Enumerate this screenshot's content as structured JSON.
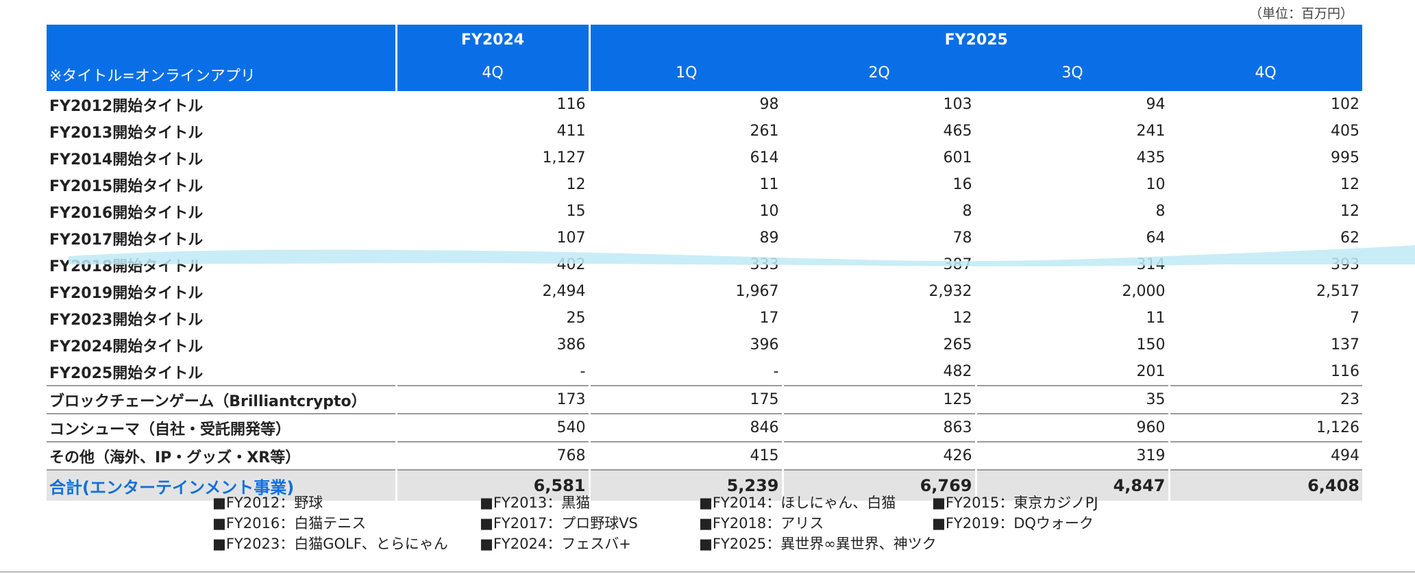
{
  "unit_label": "（単位：百万円）",
  "header": {
    "fy2024": "FY2024",
    "fy2025": "FY2025",
    "title_note": "※タイトル=オンラインアプリ",
    "quarters": [
      "4Q",
      "1Q",
      "2Q",
      "3Q",
      "4Q"
    ]
  },
  "rows": [
    {
      "label": "FY2012開始タイトル",
      "values": [
        "116",
        "98",
        "103",
        "94",
        "102"
      ]
    },
    {
      "label": "FY2013開始タイトル",
      "values": [
        "411",
        "261",
        "465",
        "241",
        "405"
      ]
    },
    {
      "label": "FY2014開始タイトル",
      "values": [
        "1,127",
        "614",
        "601",
        "435",
        "995"
      ]
    },
    {
      "label": "FY2015開始タイトル",
      "values": [
        "12",
        "11",
        "16",
        "10",
        "12"
      ]
    },
    {
      "label": "FY2016開始タイトル",
      "values": [
        "15",
        "10",
        "8",
        "8",
        "12"
      ]
    },
    {
      "label": "FY2017開始タイトル",
      "values": [
        "107",
        "89",
        "78",
        "64",
        "62"
      ]
    },
    {
      "label": "FY2018開始タイトル",
      "values": [
        "402",
        "333",
        "387",
        "314",
        "393"
      ]
    },
    {
      "label": "FY2019開始タイトル",
      "values": [
        "2,494",
        "1,967",
        "2,932",
        "2,000",
        "2,517"
      ]
    },
    {
      "label": "FY2023開始タイトル",
      "values": [
        "25",
        "17",
        "12",
        "11",
        "7"
      ]
    },
    {
      "label": "FY2024開始タイトル",
      "values": [
        "386",
        "396",
        "265",
        "150",
        "137"
      ]
    },
    {
      "label": "FY2025開始タイトル",
      "values": [
        "-",
        "-",
        "482",
        "201",
        "116"
      ]
    },
    {
      "label": "ブロックチェーンゲーム（Brilliantcrypto）",
      "values": [
        "173",
        "175",
        "125",
        "35",
        "23"
      ]
    },
    {
      "label": "コンシューマ（自社・受託開発等）",
      "values": [
        "540",
        "846",
        "863",
        "960",
        "1,126"
      ]
    },
    {
      "label": "その他（海外、IP・グッズ・XR等）",
      "values": [
        "768",
        "415",
        "426",
        "319",
        "494"
      ]
    }
  ],
  "total": {
    "label": "合計(エンターテインメント事業)",
    "values": [
      "6,581",
      "5,239",
      "6,769",
      "4,847",
      "6,408"
    ]
  },
  "highlight_color": "#bfeaf5",
  "notes": [
    [
      "■FY2012：野球",
      "■FY2013：黒猫",
      "■FY2014：ほしにゃん、白猫",
      "■FY2015：東京カジノPJ"
    ],
    [
      "■FY2016：白猫テニス",
      "■FY2017：プロ野球VS",
      "■FY2018：アリス",
      "■FY2019：DQウォーク"
    ],
    [
      "■FY2023：白猫GOLF、とらにゃん",
      "■FY2024：フェスバ+",
      "■FY2025：異世界∞異世界、神ツク"
    ]
  ]
}
